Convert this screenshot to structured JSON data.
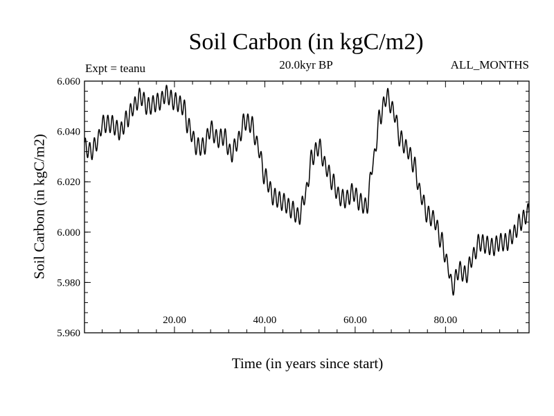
{
  "chart_data": {
    "type": "line",
    "title": "Soil Carbon (in kgC/m2)",
    "subtitle": "20.0kyr BP",
    "experiment": "Expt = teanu",
    "period": "ALL_MONTHS",
    "xlabel": "Time (in years since start)",
    "ylabel": "Soil Carbon (in kgC/m2)",
    "xlim": [
      0.08,
      98.5
    ],
    "ylim": [
      5.96,
      6.06
    ],
    "xticks": [
      20,
      40,
      60,
      80
    ],
    "xtick_labels": [
      "20.00",
      "40.00",
      "60.00",
      "80.00"
    ],
    "yticks": [
      5.96,
      5.98,
      6.0,
      6.02,
      6.04,
      6.06
    ],
    "ytick_labels": [
      "5.960",
      "5.980",
      "6.000",
      "6.020",
      "6.040",
      "6.060"
    ],
    "grid": false,
    "series": [
      {
        "name": "Soil Carbon",
        "seasonal_amplitude": 0.0035,
        "x": [
          0.08,
          1.5,
          3,
          4,
          6,
          8,
          9.5,
          11,
          12.5,
          14,
          17,
          18,
          20,
          22,
          23,
          25,
          26.5,
          28,
          29.5,
          31,
          32.5,
          34,
          35.5,
          37,
          38.5,
          40,
          42,
          44,
          46,
          47.5,
          49,
          50.5,
          52,
          53.5,
          55,
          56.5,
          58,
          59.5,
          61,
          62.5,
          64,
          65.5,
          67,
          68.5,
          70,
          71.5,
          73,
          74.5,
          76,
          77.5,
          79,
          80.5,
          81.5,
          83,
          84.5,
          86,
          87.5,
          89,
          90.5,
          92,
          93.5,
          95,
          96.5,
          98.5
        ],
        "y": [
          6.034,
          6.032,
          6.036,
          6.043,
          6.043,
          6.04,
          6.045,
          6.05,
          6.054,
          6.05,
          6.052,
          6.055,
          6.052,
          6.05,
          6.042,
          6.034,
          6.034,
          6.041,
          6.037,
          6.038,
          6.031,
          6.036,
          6.044,
          6.043,
          6.034,
          6.022,
          6.014,
          6.012,
          6.009,
          6.006,
          6.015,
          6.03,
          6.034,
          6.026,
          6.02,
          6.014,
          6.013,
          6.016,
          6.012,
          6.01,
          6.028,
          6.046,
          6.054,
          6.048,
          6.037,
          6.033,
          6.027,
          6.015,
          6.007,
          6.005,
          5.997,
          5.987,
          5.978,
          5.985,
          5.983,
          5.99,
          5.996,
          5.995,
          5.994,
          5.996,
          5.996,
          5.999,
          6.004,
          6.008
        ]
      }
    ]
  }
}
